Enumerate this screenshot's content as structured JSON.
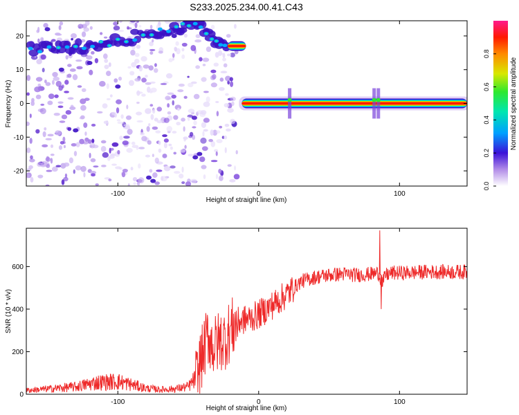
{
  "title": "S233.2025.234.00.41.C43",
  "chart_data": [
    {
      "type": "heatmap",
      "xlabel": "Height of straight line (km)",
      "ylabel": "Frequency (Hz)",
      "xlim": [
        -165,
        148
      ],
      "ylim": [
        -24.5,
        24.5
      ],
      "xticks": [
        -100,
        0,
        100
      ],
      "yticks": [
        -20,
        -10,
        0,
        10,
        20
      ],
      "grid": false,
      "colorbar": {
        "label": "Normalized spectral amplitude",
        "range": [
          0,
          1
        ],
        "ticks": [
          "0.0",
          "0.2",
          "0.4",
          "0.6",
          "0.8"
        ]
      },
      "features": [
        {
          "name": "diagonal trace",
          "x": [
            -162,
            -140,
            -120,
            -100,
            -80,
            -60,
            -45,
            -32,
            -22
          ],
          "y": [
            16,
            16.5,
            17,
            18.5,
            20.5,
            22,
            24,
            19,
            17
          ]
        },
        {
          "name": "upper tone",
          "x_range": [
            -22,
            -9
          ],
          "y": 17
        },
        {
          "name": "carrier tone",
          "x_range": [
            -12,
            148
          ],
          "y": 0
        }
      ]
    },
    {
      "type": "line",
      "xlabel": "Height of straight line (km)",
      "ylabel": "SNR (10 * v/v)",
      "xlim": [
        -165,
        148
      ],
      "ylim": [
        0,
        780
      ],
      "xticks": [
        -100,
        0,
        100
      ],
      "yticks": [
        0,
        200,
        400,
        600
      ],
      "grid": false,
      "color": "#ee2a2a",
      "series": [
        {
          "x": [
            -165,
            -150,
            -130,
            -115,
            -100,
            -90,
            -80,
            -70,
            -60,
            -50,
            -44,
            -40,
            -36,
            -32,
            -28,
            -24,
            -20,
            -15,
            -10,
            -5,
            0,
            10,
            20,
            30,
            40,
            50,
            60,
            70,
            80,
            85,
            88,
            90,
            95,
            100,
            110,
            120,
            130,
            140,
            148
          ],
          "y": [
            18,
            25,
            35,
            55,
            60,
            45,
            28,
            22,
            25,
            35,
            80,
            180,
            280,
            220,
            250,
            260,
            300,
            340,
            350,
            360,
            375,
            420,
            470,
            530,
            550,
            560,
            565,
            560,
            565,
            570,
            520,
            560,
            570,
            570,
            572,
            575,
            575,
            575,
            575
          ]
        }
      ],
      "annotations": [
        {
          "x": 86,
          "y": 770,
          "note": "spike"
        },
        {
          "x": 87,
          "y": 400,
          "note": "dip"
        }
      ]
    }
  ]
}
